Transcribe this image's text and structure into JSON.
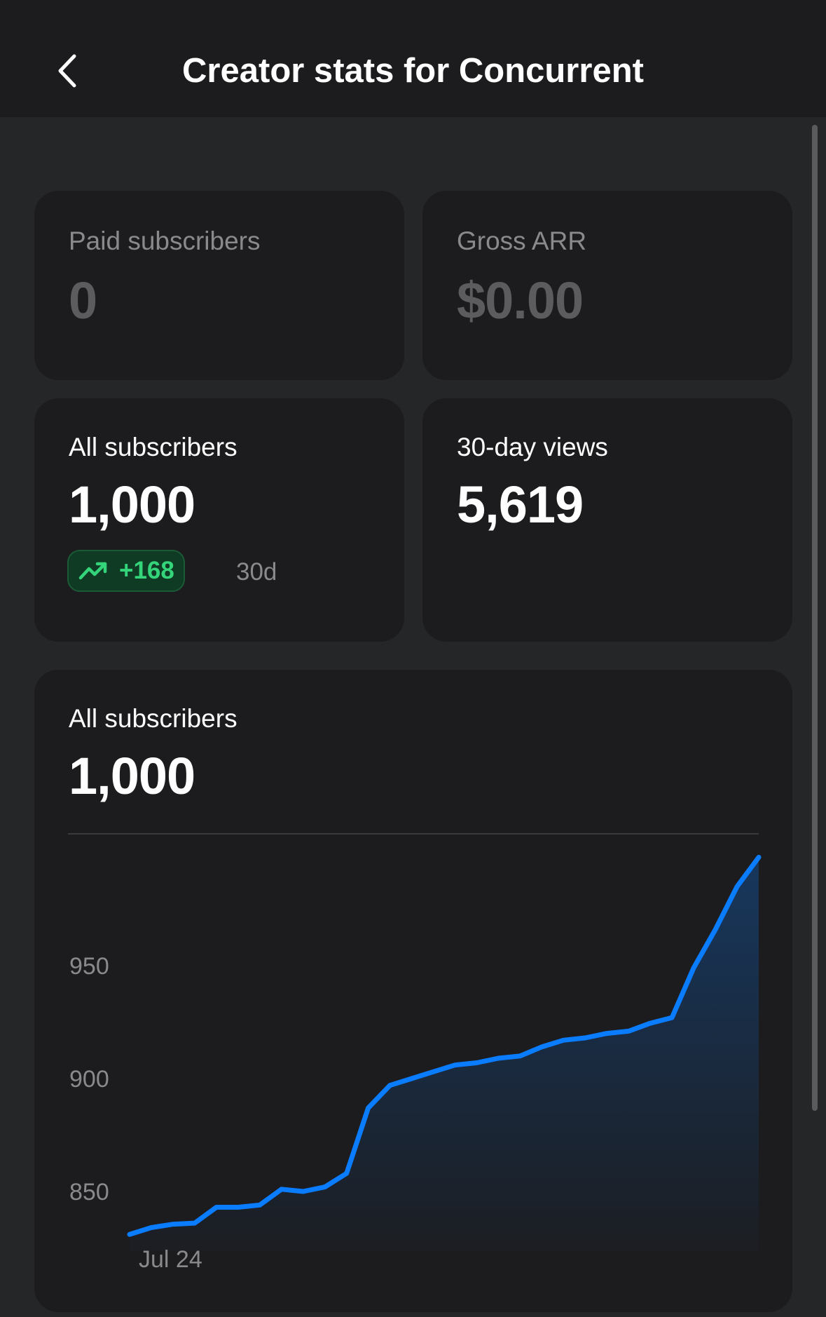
{
  "header": {
    "title": "Creator stats for Concurrent",
    "back_icon": "chevron-left-icon"
  },
  "cards": {
    "paid_subscribers": {
      "label": "Paid subscribers",
      "value": "0"
    },
    "gross_arr": {
      "label": "Gross ARR",
      "value": "$0.00"
    },
    "all_subscribers": {
      "label": "All subscribers",
      "value": "1,000",
      "delta": "+168",
      "delta_icon": "trending-up-icon",
      "delta_period": "30d"
    },
    "views_30d": {
      "label": "30-day views",
      "value": "5,619"
    }
  },
  "chart_card": {
    "label": "All subscribers",
    "value": "1,000"
  },
  "colors": {
    "background": "#252627",
    "card": "#1c1c1e",
    "line": "#0a7cff",
    "delta_green": "#34d57a"
  },
  "chart_data": {
    "type": "area",
    "title": "",
    "xlabel": "",
    "ylabel": "",
    "x_tick_labels": [
      "Jul 24"
    ],
    "y_ticks": [
      850,
      900,
      950
    ],
    "ylim": [
      833,
      1010
    ],
    "grid": false,
    "series": [
      {
        "values": [
          831,
          834,
          835.5,
          836,
          843,
          843,
          844,
          851,
          850,
          852,
          858,
          887,
          897,
          900,
          903,
          906,
          907,
          909,
          910,
          914,
          917,
          918,
          920,
          921,
          924.5,
          927,
          949,
          966,
          985,
          998
        ]
      }
    ]
  }
}
